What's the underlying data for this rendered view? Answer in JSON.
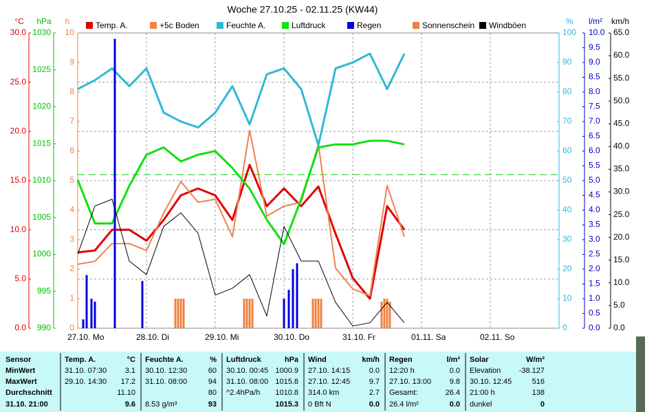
{
  "chart_data": {
    "type": "line",
    "title": "Woche 27.10.25 - 02.11.25 (KW44)",
    "xlim": [
      0,
      7
    ],
    "xticks": [
      {
        "value": 0,
        "label": "27.10. Mo"
      },
      {
        "value": 1,
        "label": "28.10. Di"
      },
      {
        "value": 2,
        "label": "29.10. Mi"
      },
      {
        "value": 3,
        "label": "30.10. Do"
      },
      {
        "value": 4,
        "label": "31.10. Fr"
      },
      {
        "value": 5,
        "label": "01.11. Sa"
      },
      {
        "value": 6,
        "label": "02.11. So"
      }
    ],
    "grid": true,
    "axes": [
      {
        "unit": "°C",
        "side": "left",
        "color": "#e00000",
        "lim": [
          0,
          30
        ],
        "ticks": [
          {
            "value": 0,
            "label": "0.0"
          },
          {
            "value": 5,
            "label": "5.0"
          },
          {
            "value": 10,
            "label": "10.0"
          },
          {
            "value": 15,
            "label": "15.0"
          },
          {
            "value": 20,
            "label": "20.0"
          },
          {
            "value": 25,
            "label": "25.0"
          },
          {
            "value": 30,
            "label": "30.0"
          }
        ]
      },
      {
        "unit": "hPa",
        "side": "left",
        "color": "#00c000",
        "lim": [
          990,
          1030
        ],
        "ticks": [
          990,
          995,
          1000,
          1005,
          1010,
          1015,
          1020,
          1025,
          1030
        ]
      },
      {
        "unit": "h",
        "side": "left",
        "color": "#f08040",
        "lim": [
          0,
          10
        ],
        "ticks": [
          0,
          1,
          2,
          3,
          4,
          5,
          6,
          7,
          8,
          9,
          10
        ]
      },
      {
        "unit": "%",
        "side": "right",
        "color": "#30b8d8",
        "lim": [
          0,
          100
        ],
        "ticks": [
          0,
          10,
          20,
          30,
          40,
          50,
          60,
          70,
          80,
          90,
          100
        ]
      },
      {
        "unit": "l/m²",
        "side": "right",
        "color": "#0000c0",
        "lim": [
          0,
          10
        ],
        "ticks": [
          {
            "value": 0,
            "label": "0.0"
          },
          {
            "value": 0.5,
            "label": "0.5"
          },
          {
            "value": 1,
            "label": "1.0"
          },
          {
            "value": 1.5,
            "label": "1.5"
          },
          {
            "value": 2,
            "label": "2.0"
          },
          {
            "value": 2.5,
            "label": "2.5"
          },
          {
            "value": 3,
            "label": "3.0"
          },
          {
            "value": 3.5,
            "label": "3.5"
          },
          {
            "value": 4,
            "label": "4.0"
          },
          {
            "value": 4.5,
            "label": "4.5"
          },
          {
            "value": 5,
            "label": "5.0"
          },
          {
            "value": 5.5,
            "label": "5.5"
          },
          {
            "value": 6,
            "label": "6.0"
          },
          {
            "value": 6.5,
            "label": "6.5"
          },
          {
            "value": 7,
            "label": "7.0"
          },
          {
            "value": 7.5,
            "label": "7.5"
          },
          {
            "value": 8,
            "label": "8.0"
          },
          {
            "value": 8.5,
            "label": "8.5"
          },
          {
            "value": 9,
            "label": "9.0"
          },
          {
            "value": 9.5,
            "label": "9.5"
          },
          {
            "value": 10,
            "label": "10.0"
          }
        ]
      },
      {
        "unit": "km/h",
        "side": "right",
        "color": "#000000",
        "lim": [
          0,
          65
        ],
        "ticks": [
          {
            "value": 0,
            "label": "0.0"
          },
          {
            "value": 5,
            "label": "5.0"
          },
          {
            "value": 10,
            "label": "10.0"
          },
          {
            "value": 15,
            "label": "15.0"
          },
          {
            "value": 20,
            "label": "20.0"
          },
          {
            "value": 25,
            "label": "25.0"
          },
          {
            "value": 30,
            "label": "30.0"
          },
          {
            "value": 35,
            "label": "35.0"
          },
          {
            "value": 40,
            "label": "40.0"
          },
          {
            "value": 45,
            "label": "45.0"
          },
          {
            "value": 50,
            "label": "50.0"
          },
          {
            "value": 55,
            "label": "55.0"
          },
          {
            "value": 60,
            "label": "60.0"
          },
          {
            "value": 65,
            "label": "65.0"
          }
        ]
      }
    ],
    "x": [
      0,
      0.25,
      0.5,
      0.75,
      1,
      1.25,
      1.5,
      1.75,
      2,
      2.25,
      2.5,
      2.75,
      3,
      3.25,
      3.5,
      3.75,
      4,
      4.25,
      4.5,
      4.75
    ],
    "series": [
      {
        "name": "Temp. A.",
        "color": "#e00000",
        "kind": "line",
        "axis": 0,
        "width": 3,
        "values": [
          7.7,
          7.9,
          10.0,
          10.0,
          8.9,
          11.0,
          13.5,
          14.2,
          13.5,
          11.0,
          16.6,
          12.4,
          14.2,
          12.4,
          14.4,
          9.6,
          5.1,
          3.0,
          12.4,
          10.0
        ]
      },
      {
        "name": "+5c Boden",
        "color": "#f08050",
        "kind": "line",
        "axis": 0,
        "width": 2,
        "values": [
          6.5,
          6.8,
          8.6,
          8.6,
          7.9,
          11.7,
          14.9,
          12.8,
          13.1,
          9.3,
          20.1,
          11.4,
          12.4,
          12.8,
          18.7,
          6.1,
          4.0,
          3.3,
          14.5,
          9.3
        ]
      },
      {
        "name": "Feuchte A.",
        "color": "#30b8d8",
        "kind": "line",
        "axis": 3,
        "width": 3,
        "values": [
          81,
          84,
          88,
          82,
          88,
          73,
          70,
          68,
          73,
          82,
          69,
          86,
          88,
          81,
          62,
          88,
          90,
          93,
          81,
          93
        ]
      },
      {
        "name": "Luftdruck",
        "color": "#10e010",
        "kind": "line",
        "axis": 1,
        "width": 3,
        "values": [
          1010.1,
          1004.2,
          1004.2,
          1009.3,
          1013.5,
          1014.5,
          1012.6,
          1013.5,
          1014.0,
          1011.7,
          1008.9,
          1004.7,
          1001.4,
          1007.5,
          1014.5,
          1014.9,
          1014.9,
          1015.4,
          1015.4,
          1014.9
        ]
      },
      {
        "name": "Regen",
        "color": "#0000e0",
        "kind": "bar",
        "axis": 4,
        "x": [
          0.08,
          0.13,
          0.2,
          0.25,
          0.54,
          0.94,
          3.0,
          3.07,
          3.13,
          3.19
        ],
        "values": [
          0.3,
          1.8,
          1.0,
          0.9,
          9.8,
          1.6,
          1.0,
          1.3,
          2.0,
          2.2
        ]
      },
      {
        "name": "Sonnenschein",
        "color": "#f08040",
        "kind": "bar",
        "axis": 2,
        "x": [
          1.42,
          1.46,
          1.5,
          1.54,
          2.42,
          2.46,
          2.5,
          2.54,
          3.42,
          3.46,
          3.5,
          3.54,
          4.42,
          4.46,
          4.5,
          4.54
        ],
        "values": [
          1,
          1,
          1,
          1,
          1,
          1,
          1,
          1,
          1,
          1,
          1,
          1,
          0.9,
          1,
          1,
          0.9
        ]
      },
      {
        "name": "Windböen",
        "color": "#000000",
        "kind": "line",
        "axis": 5,
        "width": 1,
        "values": [
          16.3,
          26.9,
          28.4,
          14.8,
          11.8,
          22.4,
          25.4,
          20.9,
          7.3,
          8.8,
          11.8,
          2.7,
          22.4,
          14.8,
          14.8,
          5.7,
          0.5,
          1.2,
          5.7,
          1.2
        ]
      }
    ]
  },
  "table": {
    "row_labels": [
      "Sensor",
      "MinWert",
      "MaxWert",
      "Durchschnitt",
      "31.10. 21:00"
    ],
    "blocks": [
      {
        "title": "Temp. A.",
        "unit": "°C",
        "rows": [
          [
            "31.10.  07:30",
            "3.1"
          ],
          [
            "29.10.  14:30",
            "17.2"
          ],
          [
            "11.10"
          ],
          [
            "9.6"
          ]
        ]
      },
      {
        "title": "Feuchte A.",
        "unit": "%",
        "rows": [
          [
            "30.10.  12:30",
            "60"
          ],
          [
            "31.10.  08:00",
            "94"
          ],
          [
            "80"
          ],
          [
            "8.53 g/m³",
            "93"
          ]
        ]
      },
      {
        "title": "Luftdruck",
        "unit": "hPa",
        "rows": [
          [
            "30.10.  00:45",
            "1000.9"
          ],
          [
            "31.10.  08:00",
            "1015.8"
          ],
          [
            "^2.4hPa/h",
            "1010.8"
          ],
          [
            "1015.3"
          ]
        ]
      },
      {
        "title": "Wind",
        "unit": "km/h",
        "rows": [
          [
            "27.10.  14:15",
            "0.0"
          ],
          [
            "27.10.  12:45",
            "9.7"
          ],
          [
            "314.0 km",
            "2.7"
          ],
          [
            "0 Bft N",
            "0.0"
          ]
        ]
      },
      {
        "title": "Regen",
        "unit": "l/m²",
        "rows": [
          [
            "12:20 h",
            "0.0"
          ],
          [
            "27.10.  13:00",
            "9.8"
          ],
          [
            "Gesamt:",
            "26.4"
          ],
          [
            "26.4 l/m²",
            "0.0"
          ]
        ]
      },
      {
        "title": "Solar",
        "unit": "W/m²",
        "rows": [
          [
            "Elevation",
            "-38.127"
          ],
          [
            "30.10.  12:45",
            "516"
          ],
          [
            "21:00 h",
            "138"
          ],
          [
            "dunkel",
            "0"
          ]
        ]
      }
    ]
  }
}
